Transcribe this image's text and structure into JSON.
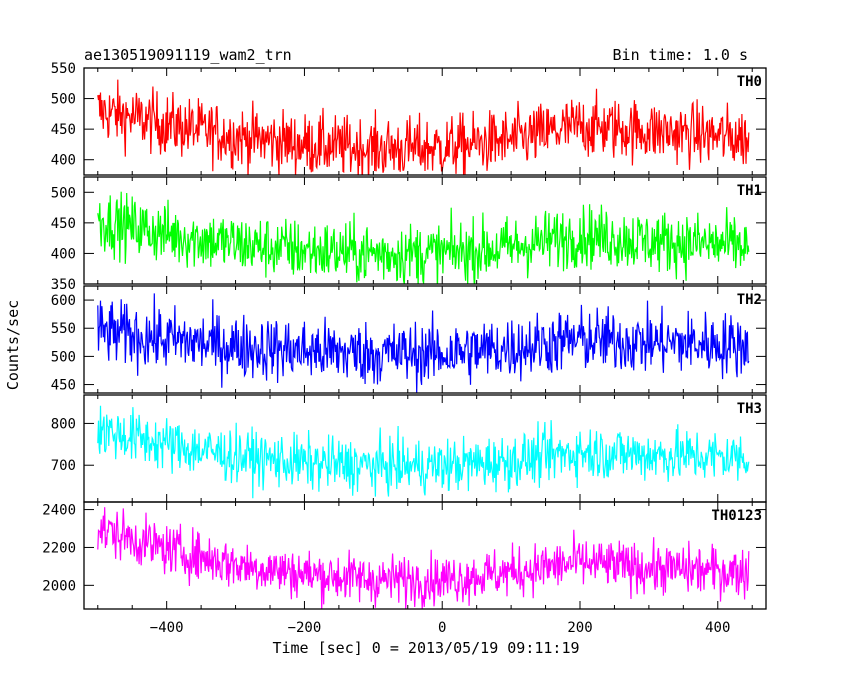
{
  "header": {
    "title": "ae130519091119_wam2_trn",
    "bin_time": "Bin time: 1.0 s"
  },
  "chart_data": {
    "type": "line",
    "xlabel": "Time [sec] 0 = 2013/05/19 09:11:19",
    "ylabel": "Counts/sec",
    "xlim": [
      -520,
      470
    ],
    "x_ticks": [
      -400,
      -200,
      0,
      200,
      400
    ],
    "x_tick_labels": [
      "−400",
      "−200",
      "0",
      "200",
      "400"
    ],
    "x_range": [
      -500,
      445
    ],
    "grid": false,
    "series": [
      {
        "name": "TH0",
        "color": "#ff0000",
        "ylim": [
          375,
          550
        ],
        "y_ticks": [
          400,
          450,
          500,
          550
        ],
        "trend_x": [
          -500,
          -400,
          -300,
          -200,
          -100,
          0,
          100,
          200,
          300,
          445
        ],
        "trend_y": [
          480,
          458,
          438,
          425,
          418,
          420,
          432,
          455,
          447,
          435
        ],
        "noise": 25
      },
      {
        "name": "TH1",
        "color": "#00ff00",
        "ylim": [
          350,
          525
        ],
        "y_ticks": [
          350,
          400,
          450,
          500
        ],
        "trend_x": [
          -500,
          -400,
          -300,
          -200,
          -100,
          0,
          100,
          200,
          300,
          445
        ],
        "trend_y": [
          455,
          432,
          415,
          405,
          400,
          400,
          410,
          430,
          420,
          412
        ],
        "noise": 25
      },
      {
        "name": "TH2",
        "color": "#0000ff",
        "ylim": [
          435,
          625
        ],
        "y_ticks": [
          450,
          500,
          550,
          600
        ],
        "trend_x": [
          -500,
          -400,
          -300,
          -200,
          -100,
          0,
          100,
          200,
          300,
          445
        ],
        "trend_y": [
          545,
          530,
          518,
          510,
          505,
          505,
          515,
          530,
          525,
          520
        ],
        "noise": 28
      },
      {
        "name": "TH3",
        "color": "#00ffff",
        "ylim": [
          612,
          868
        ],
        "y_ticks": [
          700,
          800
        ],
        "trend_x": [
          -500,
          -400,
          -300,
          -200,
          -100,
          0,
          100,
          200,
          300,
          445
        ],
        "trend_y": [
          785,
          750,
          722,
          705,
          698,
          698,
          710,
          732,
          725,
          718
        ],
        "noise": 32
      },
      {
        "name": "TH0123",
        "color": "#ff00ff",
        "ylim": [
          1875,
          2440
        ],
        "y_ticks": [
          2000,
          2200,
          2400
        ],
        "trend_x": [
          -500,
          -400,
          -300,
          -200,
          -100,
          0,
          100,
          200,
          300,
          445
        ],
        "trend_y": [
          2300,
          2190,
          2110,
          2060,
          2030,
          2030,
          2070,
          2120,
          2090,
          2070
        ],
        "noise": 65
      }
    ]
  }
}
